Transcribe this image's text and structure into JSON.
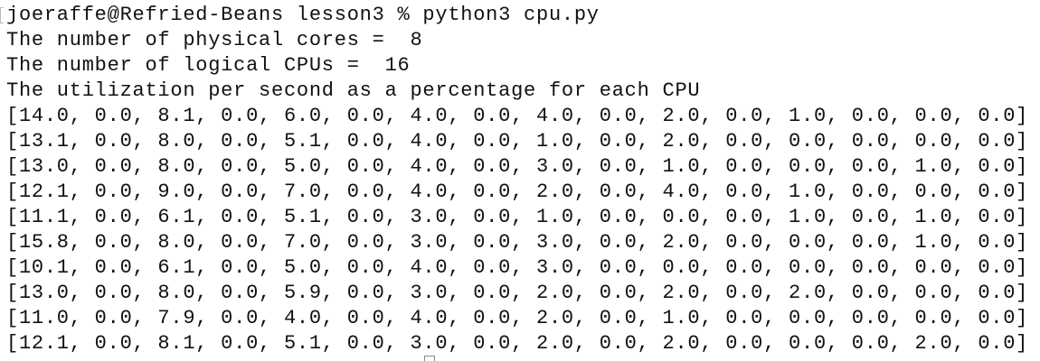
{
  "terminal": {
    "lines": [
      "joeraffe@Refried-Beans lesson3 % python3 cpu.py",
      "The number of physical cores =  8",
      "The number of logical CPUs =  16",
      "The utilization per second as a percentage for each CPU",
      "[14.0, 0.0, 8.1, 0.0, 6.0, 0.0, 4.0, 0.0, 4.0, 0.0, 2.0, 0.0, 1.0, 0.0, 0.0, 0.0]",
      "[13.1, 0.0, 8.0, 0.0, 5.1, 0.0, 4.0, 0.0, 1.0, 0.0, 2.0, 0.0, 0.0, 0.0, 0.0, 0.0]",
      "[13.0, 0.0, 8.0, 0.0, 5.0, 0.0, 4.0, 0.0, 3.0, 0.0, 1.0, 0.0, 0.0, 0.0, 1.0, 0.0]",
      "[12.1, 0.0, 9.0, 0.0, 7.0, 0.0, 4.0, 0.0, 2.0, 0.0, 4.0, 0.0, 1.0, 0.0, 0.0, 0.0]",
      "[11.1, 0.0, 6.1, 0.0, 5.1, 0.0, 3.0, 0.0, 1.0, 0.0, 0.0, 0.0, 1.0, 0.0, 1.0, 0.0]",
      "[15.8, 0.0, 8.0, 0.0, 7.0, 0.0, 3.0, 0.0, 3.0, 0.0, 2.0, 0.0, 0.0, 0.0, 1.0, 0.0]",
      "[10.1, 0.0, 6.1, 0.0, 5.0, 0.0, 4.0, 0.0, 3.0, 0.0, 0.0, 0.0, 0.0, 0.0, 0.0, 0.0]",
      "[13.0, 0.0, 8.0, 0.0, 5.9, 0.0, 3.0, 0.0, 2.0, 0.0, 2.0, 0.0, 2.0, 0.0, 0.0, 0.0]",
      "[11.0, 0.0, 7.9, 0.0, 4.0, 0.0, 4.0, 0.0, 2.0, 0.0, 1.0, 0.0, 0.0, 0.0, 0.0, 0.0]",
      "[12.1, 0.0, 8.1, 0.0, 5.1, 0.0, 3.0, 0.0, 2.0, 0.0, 2.0, 0.0, 0.0, 0.0, 2.0, 0.0]"
    ]
  }
}
